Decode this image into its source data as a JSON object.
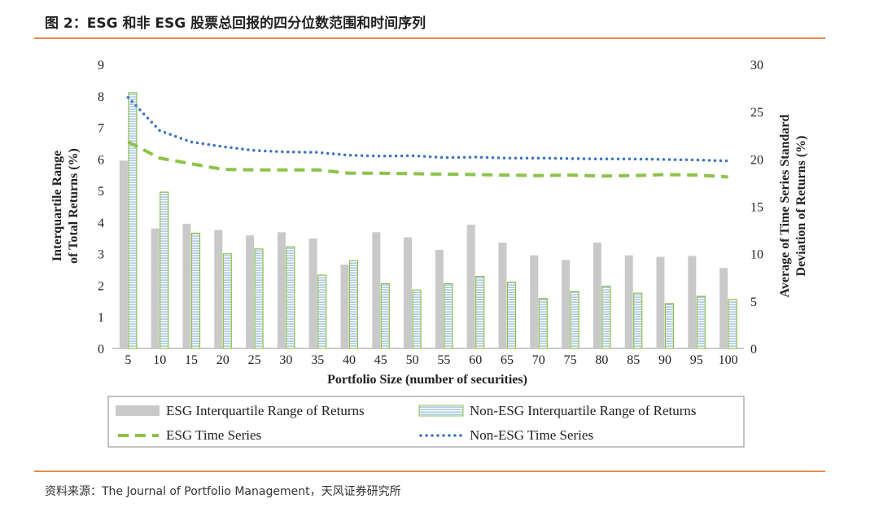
{
  "header": {
    "title": "图 2：ESG 和非 ESG 股票总回报的四分位数范围和时间序列"
  },
  "footer": {
    "source": "资料来源：The Journal of Portfolio Management，天风证券研究所"
  },
  "colors": {
    "accent_rule": "#e8894f",
    "esg_bar": "#c9c9c9",
    "non_esg_bar_fill": "#8fb4dc",
    "non_esg_bar_stroke": "#8cc34a",
    "esg_line": "#8cc34a",
    "non_esg_line": "#3a73c4"
  },
  "chart_data": {
    "type": "bar",
    "xlabel": "Portfolio Size (number of securities)",
    "ylabel_lines": [
      "Interquartile Range",
      "of Total Returns (%)"
    ],
    "y2label_lines": [
      "Average of Time Series Standard",
      "Deviation of Returns (%)"
    ],
    "categories": [
      "5",
      "10",
      "15",
      "20",
      "25",
      "30",
      "35",
      "40",
      "45",
      "50",
      "55",
      "60",
      "65",
      "70",
      "75",
      "80",
      "85",
      "90",
      "95",
      "100"
    ],
    "ylim": [
      0,
      9
    ],
    "yticks": [
      "0",
      "1",
      "2",
      "3",
      "4",
      "5",
      "6",
      "7",
      "8",
      "9"
    ],
    "y2lim": [
      0,
      30
    ],
    "y2ticks": [
      "0",
      "5",
      "10",
      "15",
      "20",
      "25",
      "30"
    ],
    "series": [
      {
        "name": "ESG Interquartile Range of Returns",
        "kind": "bar",
        "axis": "left",
        "values": [
          5.95,
          3.8,
          3.95,
          3.75,
          3.58,
          3.68,
          3.48,
          2.65,
          3.68,
          3.52,
          3.12,
          3.92,
          3.35,
          2.95,
          2.8,
          3.35,
          2.95,
          2.9,
          2.93,
          2.55
        ]
      },
      {
        "name": "Non-ESG Interquartile Range of Returns",
        "kind": "bar",
        "axis": "left",
        "values": [
          8.1,
          4.95,
          3.65,
          3.0,
          3.15,
          3.22,
          2.32,
          2.78,
          2.05,
          1.85,
          2.05,
          2.28,
          2.1,
          1.58,
          1.8,
          1.97,
          1.75,
          1.42,
          1.65,
          1.55
        ]
      },
      {
        "name": "ESG Time Series",
        "kind": "line",
        "style": "dashed",
        "axis": "right",
        "values": [
          21.8,
          20.1,
          19.5,
          18.9,
          18.85,
          18.85,
          18.85,
          18.5,
          18.5,
          18.45,
          18.4,
          18.35,
          18.3,
          18.25,
          18.3,
          18.2,
          18.25,
          18.35,
          18.3,
          18.1
        ]
      },
      {
        "name": "Non-ESG Time Series",
        "kind": "line",
        "style": "dotted",
        "axis": "right",
        "values": [
          26.5,
          23.0,
          21.8,
          21.3,
          20.9,
          20.75,
          20.7,
          20.4,
          20.3,
          20.35,
          20.15,
          20.2,
          20.1,
          20.1,
          20.05,
          20.0,
          20.0,
          19.95,
          19.9,
          19.8
        ]
      }
    ],
    "legend": {
      "placement": "bottom",
      "labels": [
        "ESG Interquartile Range of Returns",
        "Non-ESG Interquartile Range of Returns",
        "ESG Time Series",
        "Non-ESG Time Series"
      ]
    }
  }
}
